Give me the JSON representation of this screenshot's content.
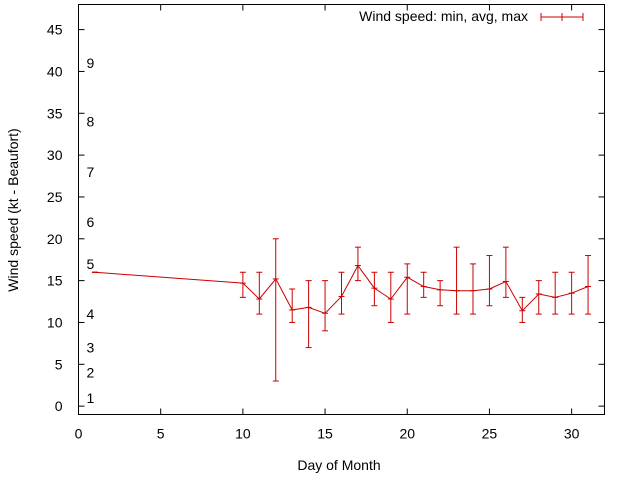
{
  "chart_data": {
    "type": "line",
    "title": "",
    "xlabel": "Day of Month",
    "ylabel": "Wind speed (kt - Beaufort)",
    "xlim": [
      0,
      32
    ],
    "ylim": [
      -1,
      48
    ],
    "xticks": [
      0,
      5,
      10,
      15,
      20,
      25,
      30
    ],
    "yticks": [
      0,
      5,
      10,
      15,
      20,
      25,
      30,
      35,
      40,
      45
    ],
    "beaufort_labels": [
      {
        "label": "1",
        "y": 1
      },
      {
        "label": "2",
        "y": 4
      },
      {
        "label": "3",
        "y": 7
      },
      {
        "label": "4",
        "y": 11
      },
      {
        "label": "5",
        "y": 17
      },
      {
        "label": "6",
        "y": 22
      },
      {
        "label": "7",
        "y": 28
      },
      {
        "label": "8",
        "y": 34
      },
      {
        "label": "9",
        "y": 41
      }
    ],
    "grid": false,
    "legend_position": "top-right",
    "series": [
      {
        "name": "Wind speed: min, avg, max",
        "color": "#cc0000",
        "points": [
          {
            "x": 1,
            "min": 16,
            "avg": 16,
            "max": 16
          },
          {
            "x": 10,
            "min": 13,
            "avg": 14.7,
            "max": 16
          },
          {
            "x": 11,
            "min": 11,
            "avg": 12.8,
            "max": 16
          },
          {
            "x": 12,
            "min": 3,
            "avg": 15.2,
            "max": 20
          },
          {
            "x": 13,
            "min": 10,
            "avg": 11.5,
            "max": 14
          },
          {
            "x": 14,
            "min": 7,
            "avg": 11.8,
            "max": 15
          },
          {
            "x": 15,
            "min": 9,
            "avg": 11.1,
            "max": 15
          },
          {
            "x": 16,
            "min": 11,
            "avg": 13.1,
            "max": 16
          },
          {
            "x": 17,
            "min": 15,
            "avg": 16.8,
            "max": 19
          },
          {
            "x": 18,
            "min": 12,
            "avg": 14.1,
            "max": 16
          },
          {
            "x": 19,
            "min": 10,
            "avg": 12.8,
            "max": 16
          },
          {
            "x": 20,
            "min": 11,
            "avg": 15.4,
            "max": 17
          },
          {
            "x": 21,
            "min": 13,
            "avg": 14.3,
            "max": 16
          },
          {
            "x": 22,
            "min": 12,
            "avg": 13.9,
            "max": 15
          },
          {
            "x": 23,
            "min": 11,
            "avg": 13.8,
            "max": 19
          },
          {
            "x": 24,
            "min": 11,
            "avg": 13.8,
            "max": 17
          },
          {
            "x": 25,
            "min": 12,
            "avg": 14.0,
            "max": 18
          },
          {
            "x": 26,
            "min": 13,
            "avg": 14.9,
            "max": 19
          },
          {
            "x": 27,
            "min": 10,
            "avg": 11.4,
            "max": 13
          },
          {
            "x": 28,
            "min": 11,
            "avg": 13.4,
            "max": 15
          },
          {
            "x": 29,
            "min": 11,
            "avg": 13.0,
            "max": 16
          },
          {
            "x": 30,
            "min": 11,
            "avg": 13.5,
            "max": 16
          },
          {
            "x": 31,
            "min": 11,
            "avg": 14.3,
            "max": 18
          }
        ]
      }
    ]
  }
}
